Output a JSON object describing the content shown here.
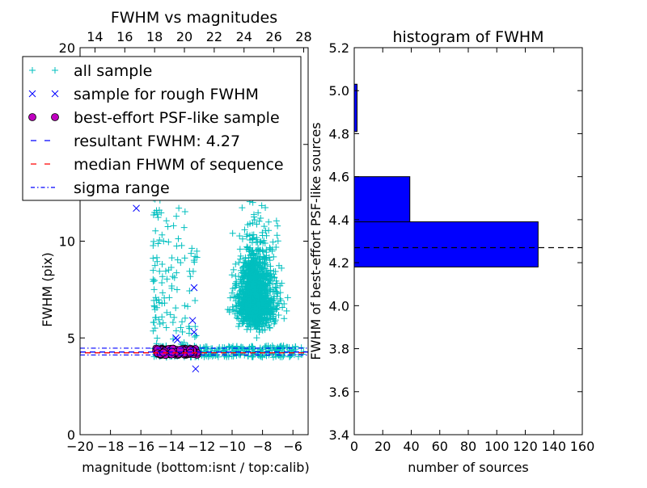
{
  "chart_data": [
    {
      "type": "scatter",
      "title": "FWHM vs magnitudes",
      "xlabel": "magnitude (bottom:isnt / top:calib)",
      "ylabel": "FWHM (pix)",
      "xlim": [
        -20,
        -5
      ],
      "ylim": [
        0,
        20
      ],
      "xticks": [
        "−20",
        "−18",
        "−16",
        "−14",
        "−12",
        "−10",
        "−8",
        "−6"
      ],
      "yticks": [
        "0",
        "5",
        "10",
        "15",
        "20"
      ],
      "top_xlim": [
        13,
        28.3
      ],
      "top_xticks": [
        "14",
        "16",
        "18",
        "20",
        "22",
        "24",
        "26",
        "28"
      ],
      "legend_position": "upper-left",
      "legend": [
        "all sample",
        "sample for rough FWHM",
        "best-effort PSF-like sample",
        "resultant FWHM: 4.27",
        "median FHWM of sequence",
        "sigma range"
      ],
      "colors": {
        "all_sample": "#00bfbf",
        "rough_sample": "#0000ff",
        "psf_sample": "#bf00bf",
        "resultant_line": "#0000ff",
        "median_line": "#ff0000",
        "sigma_line": "#0000ff"
      },
      "series": [
        {
          "name": "all sample",
          "marker": "+",
          "clusters": [
            {
              "x_range": [
                -11.0,
                -5.3
              ],
              "y_range": [
                3.1,
                20
              ],
              "count": 1100
            },
            {
              "x_range": [
                -9.6,
                -7.6
              ],
              "y_range": [
                5,
                13
              ],
              "count": 400
            },
            {
              "x_range": [
                -15.2,
                -12.2
              ],
              "y_range": [
                4.0,
                16.5
              ],
              "count": 180
            },
            {
              "x_range": [
                -15.0,
                -5.3
              ],
              "y_range": [
                4.0,
                4.6
              ],
              "count": 260
            }
          ]
        },
        {
          "name": "sample for rough FWHM",
          "marker": "x",
          "points": [
            [
              -16.3,
              11.7
            ],
            [
              -12.5,
              7.6
            ],
            [
              -12.6,
              5.9
            ],
            [
              -12.5,
              5.3
            ],
            [
              -13.7,
              5.0
            ],
            [
              -13.6,
              4.9
            ],
            [
              -12.4,
              3.4
            ],
            [
              -14.5,
              4.2
            ],
            [
              -13.0,
              4.4
            ]
          ]
        },
        {
          "name": "best-effort PSF-like sample",
          "marker": "o",
          "x_range": [
            -15.0,
            -12.3
          ],
          "y_range": [
            4.12,
            4.45
          ],
          "count": 130
        }
      ],
      "lines": [
        {
          "name": "resultant FWHM: 4.27",
          "y": 4.27,
          "style": "dashed"
        },
        {
          "name": "median FHWM of sequence",
          "y": 4.27,
          "style": "dashed"
        },
        {
          "name": "sigma range",
          "y": [
            4.12,
            4.47
          ],
          "style": "dashdot"
        }
      ]
    },
    {
      "type": "bar",
      "orientation": "horizontal",
      "title": "histogram of FWHM",
      "xlabel": "number of sources",
      "ylabel": "FWHM of best-effort PSF-like sources",
      "xlim": [
        0,
        160
      ],
      "ylim": [
        3.4,
        5.2
      ],
      "xticks": [
        "0",
        "20",
        "40",
        "60",
        "80",
        "100",
        "120",
        "140",
        "160"
      ],
      "yticks": [
        "3.4",
        "3.6",
        "3.8",
        "4.0",
        "4.2",
        "4.4",
        "4.6",
        "4.8",
        "5.0",
        "5.2"
      ],
      "bar_color": "#0000ff",
      "bins": [
        {
          "y0": 4.18,
          "y1": 4.39,
          "count": 129
        },
        {
          "y0": 4.39,
          "y1": 4.6,
          "count": 39
        },
        {
          "y0": 4.81,
          "y1": 5.03,
          "count": 2
        }
      ],
      "reference_line": {
        "y": 4.27,
        "style": "dashed",
        "color": "#000000"
      }
    }
  ]
}
